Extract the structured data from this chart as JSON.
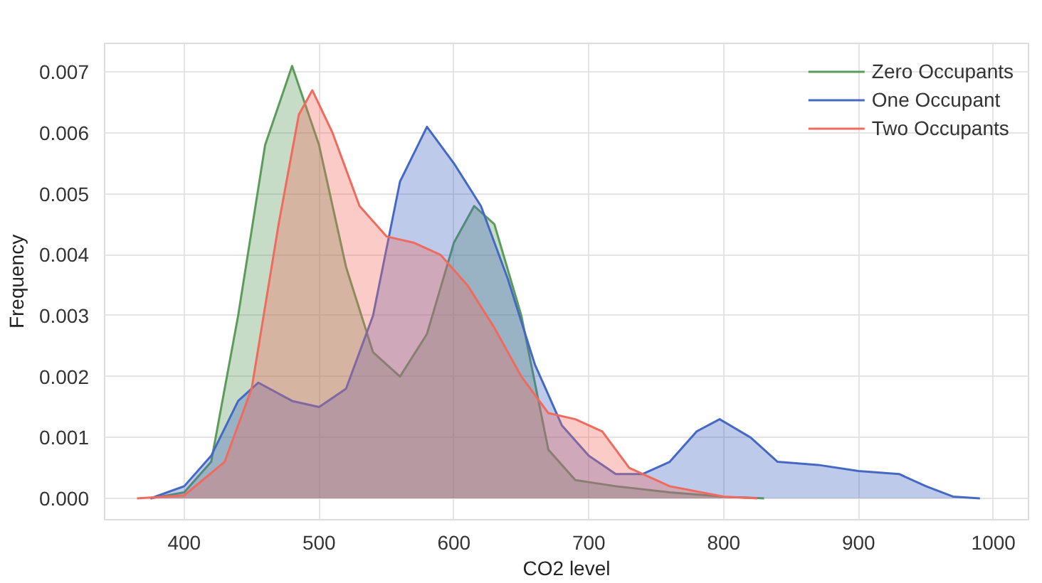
{
  "chart_data": {
    "type": "area",
    "xlabel": "CO2 level",
    "ylabel": "Frequency",
    "xlim": [
      341,
      1026
    ],
    "ylim": [
      -0.00035,
      0.00747
    ],
    "xticks": [
      400,
      500,
      600,
      700,
      800,
      900,
      1000
    ],
    "yticks": [
      {
        "value": 0,
        "label": "0.000"
      },
      {
        "value": 0.001,
        "label": "0.001"
      },
      {
        "value": 0.002,
        "label": "0.002"
      },
      {
        "value": 0.003,
        "label": "0.003"
      },
      {
        "value": 0.004,
        "label": "0.004"
      },
      {
        "value": 0.005,
        "label": "0.005"
      },
      {
        "value": 0.006,
        "label": "0.006"
      },
      {
        "value": 0.007,
        "label": "0.007"
      }
    ],
    "grid": true,
    "legend": "top right",
    "series": [
      {
        "name": "Zero Occupants",
        "color": "#5b9c5b",
        "x": [
          375,
          400,
          420,
          440,
          460,
          480,
          500,
          520,
          540,
          560,
          580,
          600,
          615,
          630,
          650,
          670,
          690,
          720,
          760,
          800,
          830
        ],
        "values": [
          0,
          0.0001,
          0.0006,
          0.003,
          0.0058,
          0.0071,
          0.0058,
          0.0038,
          0.0024,
          0.002,
          0.0027,
          0.0042,
          0.0048,
          0.0045,
          0.003,
          0.0008,
          0.0003,
          0.0002,
          0.0001,
          3e-05,
          0
        ]
      },
      {
        "name": "One Occupant",
        "color": "#4468c4",
        "x": [
          375,
          400,
          420,
          440,
          455,
          480,
          500,
          520,
          540,
          560,
          580,
          600,
          620,
          640,
          660,
          680,
          700,
          720,
          740,
          760,
          780,
          797,
          820,
          840,
          870,
          900,
          930,
          950,
          970,
          990
        ],
        "values": [
          0,
          0.0002,
          0.0007,
          0.0016,
          0.0019,
          0.0016,
          0.0015,
          0.0018,
          0.003,
          0.0052,
          0.0061,
          0.0055,
          0.0048,
          0.0036,
          0.0022,
          0.0012,
          0.0007,
          0.0004,
          0.0004,
          0.0006,
          0.0011,
          0.0013,
          0.001,
          0.0006,
          0.00055,
          0.00045,
          0.0004,
          0.0002,
          3e-05,
          0
        ]
      },
      {
        "name": "Two Occupants",
        "color": "#f06a5e",
        "x": [
          365,
          400,
          430,
          450,
          470,
          485,
          495,
          510,
          530,
          550,
          570,
          590,
          610,
          630,
          650,
          670,
          690,
          710,
          730,
          760,
          800,
          825
        ],
        "values": [
          0,
          5e-05,
          0.0006,
          0.0018,
          0.0045,
          0.0063,
          0.0067,
          0.006,
          0.0048,
          0.0043,
          0.0042,
          0.004,
          0.0035,
          0.0028,
          0.002,
          0.0014,
          0.0013,
          0.0011,
          0.0005,
          0.0002,
          3e-05,
          0
        ]
      }
    ]
  }
}
